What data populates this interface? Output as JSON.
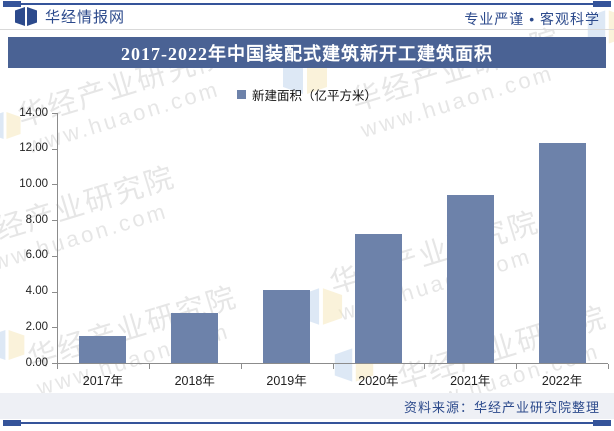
{
  "header": {
    "brand": "华经情报网",
    "slogan": "专业严谨 • 客观科学"
  },
  "title_banner": "2017-2022年中国装配式建筑新开工建筑面积",
  "legend": {
    "label": "新建面积（亿平方米）"
  },
  "chart_data": {
    "type": "bar",
    "title": "2017-2022年中国装配式建筑新开工建筑面积",
    "series_name": "新建面积（亿平方米）",
    "categories": [
      "2017年",
      "2018年",
      "2019年",
      "2020年",
      "2021年",
      "2022年"
    ],
    "values": [
      1.5,
      2.8,
      4.1,
      7.2,
      9.4,
      12.3
    ],
    "xlabel": "",
    "ylabel": "新建面积（亿平方米）",
    "ylim": [
      0,
      14
    ],
    "ytick_step": 2,
    "ytick_format": "2dp",
    "grid": false,
    "legend_position": "top",
    "bar_color": "#6d82aa"
  },
  "footer": {
    "source": "资料来源：华经产业研究院整理"
  },
  "watermark": {
    "line1": "华经产业研究院",
    "line2": "www.huaon.com"
  },
  "colors": {
    "banner_bg": "#4a6294",
    "bar_fill": "#6d82aa",
    "brand_text": "#2c4a8c",
    "border_line": "#35549a",
    "axis": "#8c8c8c",
    "footer_bg": "#eef0f5"
  }
}
